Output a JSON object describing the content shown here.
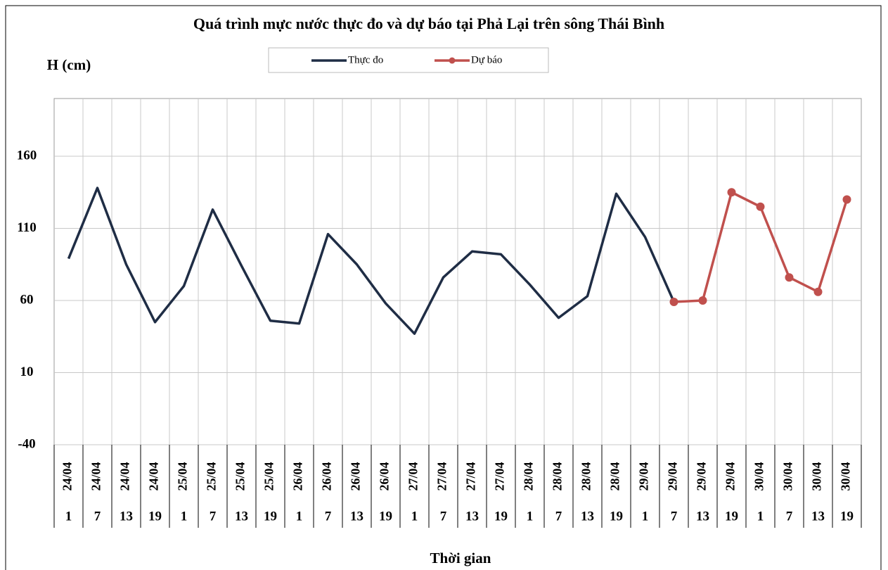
{
  "chart_data": {
    "type": "line",
    "title": "Quá trình  mực nước thực đo và dự báo tại Phả Lại trên sông Thái Bình",
    "y_label": "H (cm)",
    "x_label": "Thời gian",
    "categories": [
      "24/04",
      "24/04",
      "24/04",
      "24/04",
      "25/04",
      "25/04",
      "25/04",
      "25/04",
      "26/04",
      "26/04",
      "26/04",
      "26/04",
      "27/04",
      "27/04",
      "27/04",
      "27/04",
      "28/04",
      "28/04",
      "28/04",
      "28/04",
      "29/04",
      "29/04",
      "29/04",
      "29/04",
      "30/04",
      "30/04",
      "30/04",
      "30/04"
    ],
    "hours": [
      "1",
      "7",
      "13",
      "19",
      "1",
      "7",
      "13",
      "19",
      "1",
      "7",
      "13",
      "19",
      "1",
      "7",
      "13",
      "19",
      "1",
      "7",
      "13",
      "19",
      "1",
      "7",
      "13",
      "19",
      "1",
      "7",
      "13",
      "19"
    ],
    "series": [
      {
        "name": "Thực đo",
        "color": "#1f2d45",
        "markers": false,
        "values": [
          89,
          138,
          85,
          45,
          70,
          123,
          84,
          46,
          44,
          106,
          85,
          58,
          37,
          76,
          94,
          92,
          71,
          48,
          63,
          134,
          104,
          59,
          null,
          null,
          null,
          null,
          null,
          null
        ]
      },
      {
        "name": "Dự báo",
        "color": "#c0504d",
        "markers": true,
        "values": [
          null,
          null,
          null,
          null,
          null,
          null,
          null,
          null,
          null,
          null,
          null,
          null,
          null,
          null,
          null,
          null,
          null,
          null,
          null,
          null,
          null,
          59,
          60,
          135,
          125,
          76,
          66,
          130
        ]
      }
    ],
    "ylim": [
      -40,
      200
    ],
    "yticks": [
      -40,
      10,
      60,
      110,
      160
    ],
    "grid": true
  }
}
